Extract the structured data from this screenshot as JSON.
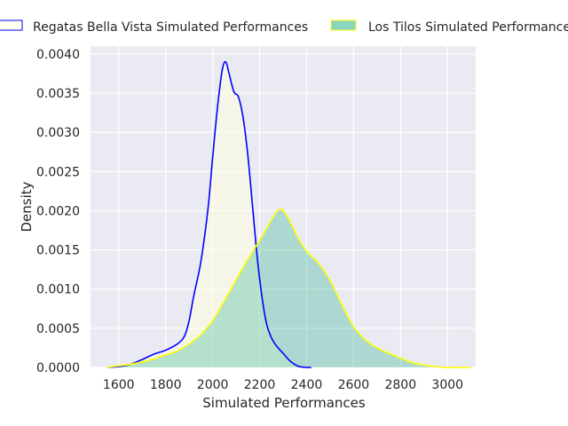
{
  "chart_data": {
    "type": "area",
    "title": "",
    "xlabel": "Simulated Performances",
    "ylabel": "Density",
    "xlim": [
      1480,
      3120
    ],
    "ylim": [
      0,
      0.0041
    ],
    "xticks": [
      1600,
      1800,
      2000,
      2200,
      2400,
      2600,
      2800,
      3000
    ],
    "yticks": [
      "0.0000",
      "0.0005",
      "0.0010",
      "0.0015",
      "0.0020",
      "0.0025",
      "0.0030",
      "0.0035",
      "0.0040"
    ],
    "grid": true,
    "legend_position": "top",
    "series": [
      {
        "name": "Regatas Bella Vista Simulated Performances",
        "line_color": "#0000ff",
        "fill_color": "#ffffe0",
        "fill_opacity": 0.55,
        "x": [
          1550,
          1600,
          1650,
          1700,
          1750,
          1800,
          1850,
          1880,
          1900,
          1920,
          1950,
          1980,
          2000,
          2020,
          2040,
          2055,
          2070,
          2090,
          2110,
          2130,
          2150,
          2170,
          2190,
          2210,
          2230,
          2250,
          2270,
          2300,
          2330,
          2360,
          2380,
          2400,
          2420
        ],
        "y": [
          0.0,
          1e-05,
          4e-05,
          0.0001,
          0.00017,
          0.00022,
          0.0003,
          0.0004,
          0.0006,
          0.00092,
          0.00135,
          0.00202,
          0.00268,
          0.0033,
          0.00378,
          0.0039,
          0.00375,
          0.00352,
          0.00345,
          0.00318,
          0.0027,
          0.00205,
          0.0014,
          0.0009,
          0.00055,
          0.00038,
          0.00028,
          0.00018,
          8e-05,
          2e-05,
          5e-06,
          0.0,
          0.0
        ]
      },
      {
        "name": "Los Tilos Simulated Performances",
        "line_color": "#ffff00",
        "fill_color": "#3cb896",
        "fill_opacity": 0.35,
        "x": [
          1550,
          1600,
          1650,
          1700,
          1750,
          1800,
          1850,
          1900,
          1950,
          2000,
          2050,
          2100,
          2150,
          2200,
          2250,
          2280,
          2300,
          2330,
          2360,
          2400,
          2450,
          2500,
          2550,
          2600,
          2650,
          2700,
          2750,
          2800,
          2850,
          2900,
          2950,
          3000,
          3050,
          3100
        ],
        "y": [
          0.0,
          2e-05,
          4e-05,
          7e-05,
          0.00011,
          0.00016,
          0.00021,
          0.0003,
          0.00042,
          0.0006,
          0.00085,
          0.00112,
          0.00138,
          0.00162,
          0.00188,
          0.00201,
          0.002,
          0.00186,
          0.00167,
          0.00148,
          0.00133,
          0.00111,
          0.0008,
          0.00052,
          0.00035,
          0.00025,
          0.00018,
          0.00012,
          6e-05,
          3e-05,
          1e-05,
          0.0,
          0.0,
          0.0
        ]
      }
    ]
  }
}
